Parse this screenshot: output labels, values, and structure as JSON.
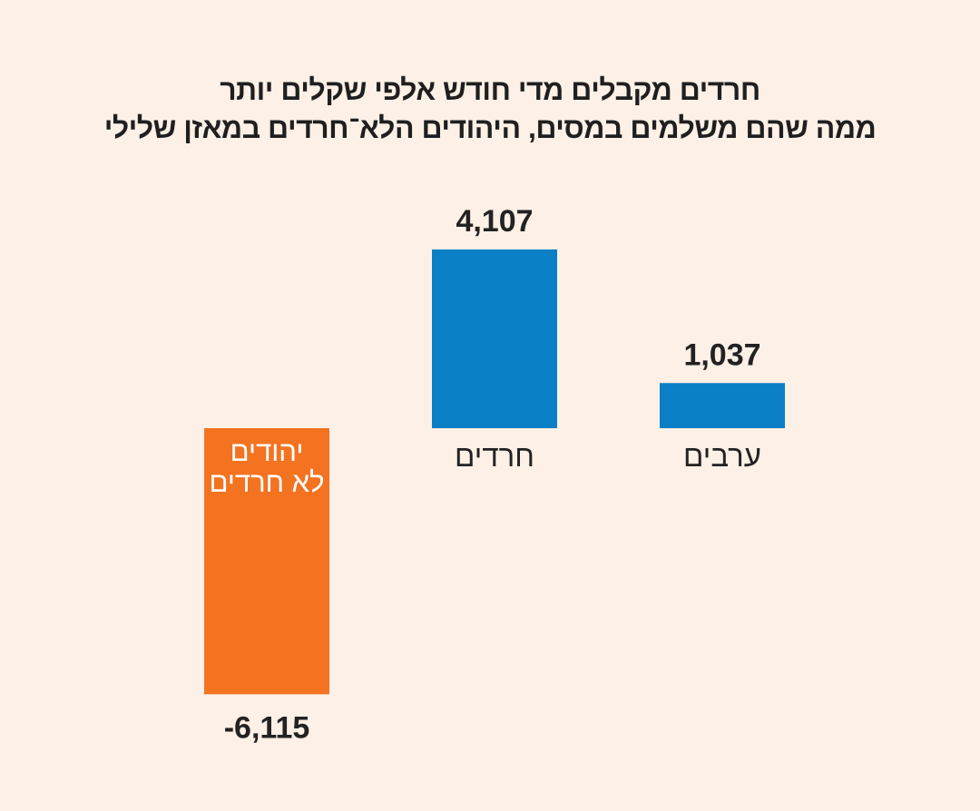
{
  "chart_data": {
    "type": "bar",
    "title_lines": [
      "חרדים מקבלים מדי חודש אלפי שקלים יותר",
      "ממה שהם משלמים במסים, היהודים הלא־חרדים במאזן שלילי"
    ],
    "categories": [
      {
        "lines": [
          "ערבים"
        ],
        "label_inside": false
      },
      {
        "lines": [
          "חרדים"
        ],
        "label_inside": false
      },
      {
        "lines": [
          "יהודים",
          "לא חרדים"
        ],
        "label_inside": true
      }
    ],
    "values": [
      1037,
      4107,
      -6115
    ],
    "value_labels": [
      "1,037",
      "4,107",
      "-6,115"
    ],
    "colors": [
      "#0a7fc6",
      "#0a7fc6",
      "#f37321"
    ],
    "grid": false,
    "legend": "none"
  }
}
